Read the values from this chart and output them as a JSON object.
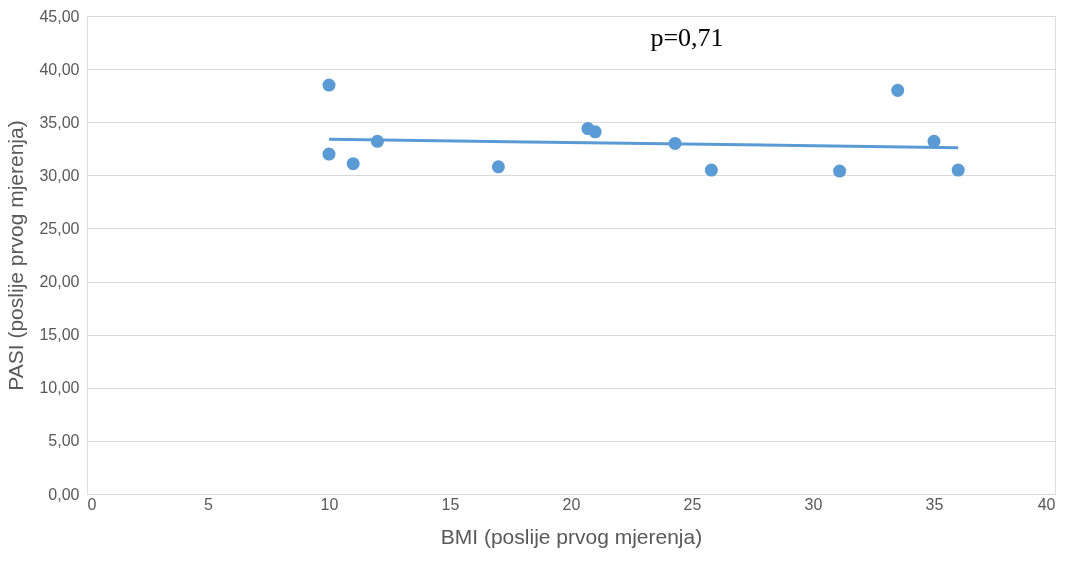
{
  "chart_data": {
    "type": "scatter",
    "xlabel": "BMI (poslije prvog mjerenja)",
    "ylabel": "PASI (poslije prvog mjerenja)",
    "annotations": [
      "p=0,71"
    ],
    "xlim": [
      0,
      40
    ],
    "xticks": [
      0,
      5,
      10,
      15,
      20,
      25,
      30,
      35,
      40
    ],
    "ylim": [
      0,
      45
    ],
    "yticks": [
      {
        "value": 0,
        "label": "0,00"
      },
      {
        "value": 5,
        "label": "5,00"
      },
      {
        "value": 10,
        "label": "10,00"
      },
      {
        "value": 15,
        "label": "15,00"
      },
      {
        "value": 20,
        "label": "20,00"
      },
      {
        "value": 25,
        "label": "25,00"
      },
      {
        "value": 30,
        "label": "30,00"
      },
      {
        "value": 35,
        "label": "35,00"
      },
      {
        "value": 40,
        "label": "40,00"
      },
      {
        "value": 45,
        "label": "45,00"
      }
    ],
    "grid": "y",
    "marker": "circle",
    "series": [
      {
        "color": "#5b9bd5",
        "x": [
          10,
          10,
          11,
          12,
          17,
          20.7,
          21,
          24.3,
          25.8,
          31.1,
          33.5,
          35,
          36
        ],
        "values": [
          38.5,
          32,
          31.1,
          33.2,
          30.8,
          34.4,
          34.1,
          33,
          30.5,
          30.4,
          38,
          33.2,
          30.5
        ]
      },
      {
        "type": "line",
        "marker": "none",
        "color": "#5b9bd5",
        "line_style": "solid",
        "x": [
          10,
          36
        ],
        "values": [
          33.4,
          32.6
        ]
      }
    ]
  }
}
